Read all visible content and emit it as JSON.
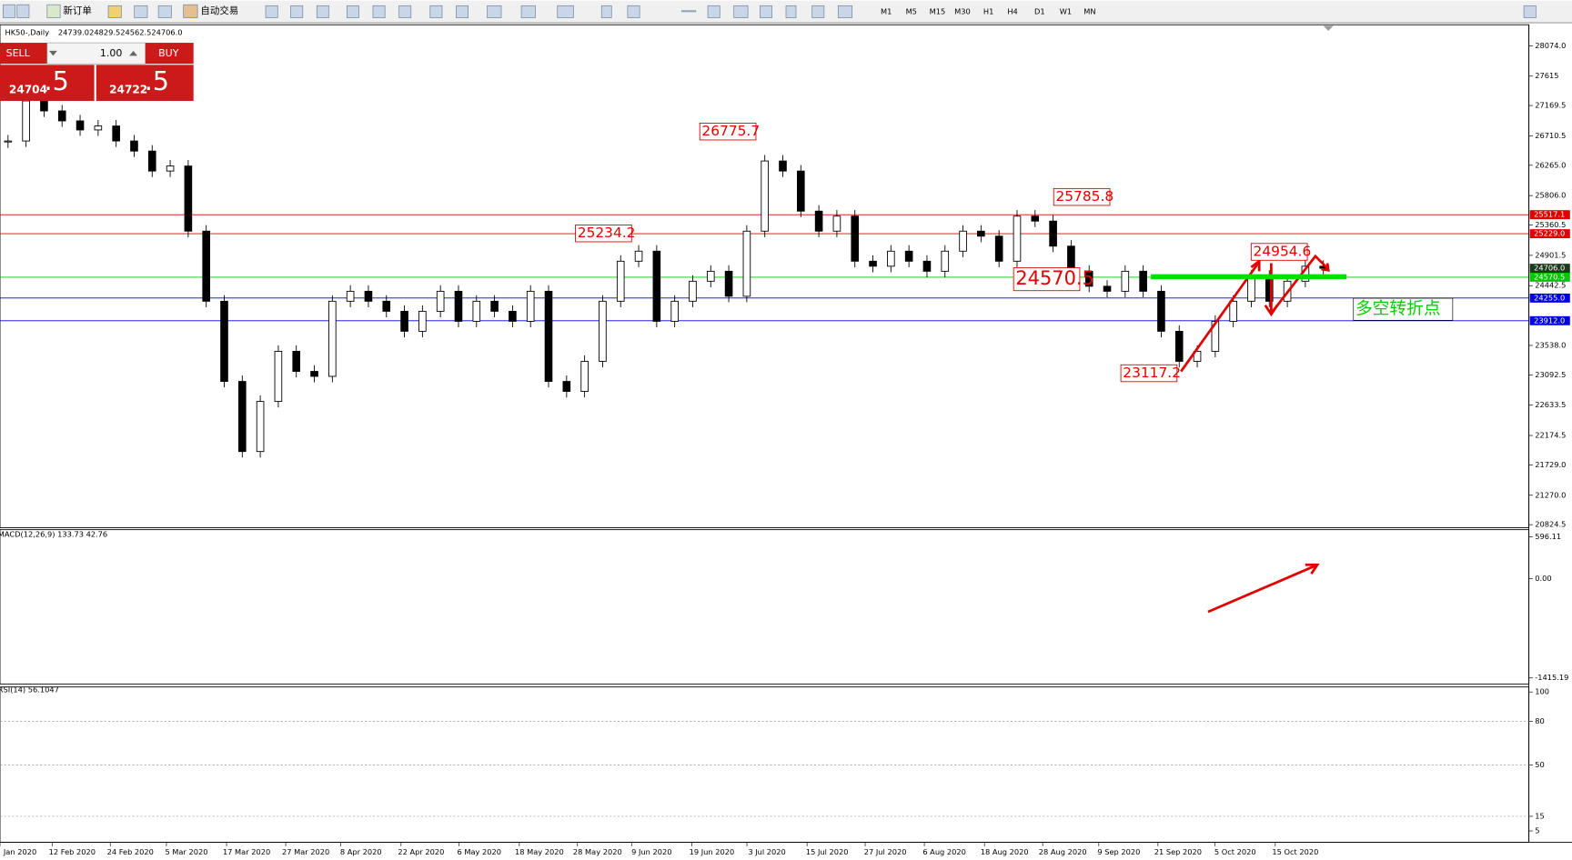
{
  "toolbar": {
    "new_order": "新订单",
    "auto_trading": "自动交易",
    "timeframes": [
      "M1",
      "M5",
      "M15",
      "M30",
      "H1",
      "H4",
      "D1",
      "W1",
      "MN"
    ]
  },
  "trade_panel": {
    "sell": "SELL",
    "buy": "BUY",
    "volume": "1.00",
    "bid_main": "24704",
    "bid_tail": ".5",
    "ask_main": "24722",
    "ask_tail": ".5"
  },
  "chart": {
    "symbol": "HK50-,Daily",
    "ohlc": [
      {
        "value": 24739,
        "label": "24739.0"
      },
      {
        "value": 24829.5,
        "label": "24829.5"
      },
      {
        "value": 24562.5,
        "label": "24562.5"
      },
      {
        "value": 24706,
        "label": "24706.0"
      }
    ],
    "ylim": [
      20824.5,
      28074
    ],
    "yticks": [
      {
        "value": 28074,
        "label": "28074.0"
      },
      27615,
      27169.5,
      26710.5,
      {
        "value": 26265,
        "label": "26265.0"
      },
      {
        "value": 25806,
        "label": "25806.0"
      },
      25360.5,
      24901.5,
      24442.5,
      {
        "value": 23538,
        "label": "23538.0"
      },
      23092.5,
      22633.5,
      22174.5,
      {
        "value": 21729,
        "label": "21729.0"
      },
      {
        "value": 21270,
        "label": "21270.0"
      },
      20824.5
    ],
    "levels": [
      {
        "value": 25517.1,
        "label": "25517.1",
        "color": "#e00000"
      },
      {
        "value": 25229,
        "label": "25229.0",
        "color": "#e00000"
      },
      {
        "value": 24570.5,
        "label": "24570.5",
        "color": "#00c800"
      },
      {
        "value": 24255,
        "label": "24255.0",
        "color": "#0000e0"
      },
      {
        "value": 23912,
        "label": "23912.0",
        "color": "#0000e0"
      }
    ],
    "annotations": [
      26775.7,
      25234.2,
      25785.8,
      24570.5,
      23117.2,
      24954.6
    ],
    "pivot_note": "多空转折点",
    "closes": [
      26633,
      27240,
      27088,
      26937,
      26800,
      26860,
      26633,
      26480,
      26178,
      26254,
      25268,
      24207,
      22993,
      21932,
      22690,
      23449,
      23145,
      23070,
      24207,
      24358,
      24207,
      24055,
      23752,
      24055,
      24358,
      23903,
      24207,
      24055,
      23903,
      24358,
      22993,
      22842,
      23297,
      24207,
      24813,
      24965,
      23903,
      24207,
      24510,
      24661,
      24282,
      25268,
      26330,
      26178,
      25571,
      25268,
      25496,
      24813,
      24737,
      24965,
      24813,
      24661,
      24965,
      25268,
      25192,
      24813,
      25496,
      25420,
      25041,
      24661,
      24434,
      24358,
      24661,
      24358,
      23752,
      23297,
      23449,
      23903,
      24207,
      24586,
      24207,
      24510,
      24737,
      24706
    ],
    "dates": [
      "Jan 2020",
      "12 Feb 2020",
      "24 Feb 2020",
      "5 Mar 2020",
      "17 Mar 2020",
      "27 Mar 2020",
      "8 Apr 2020",
      "22 Apr 2020",
      "6 May 2020",
      "18 May 2020",
      "28 May 2020",
      "9 Jun 2020",
      "19 Jun 2020",
      "3 Jul 2020",
      "15 Jul 2020",
      "27 Jul 2020",
      "6 Aug 2020",
      "18 Aug 2020",
      "28 Aug 2020",
      "9 Sep 2020",
      "21 Sep 2020",
      "5 Oct 2020",
      "15 Oct 2020"
    ],
    "macd": {
      "label": "MACD(12,26,9) 133.73 42.76",
      "ylim": [
        -1415.19,
        596.11
      ],
      "yticks": [
        596.11,
        {
          "value": 0,
          "label": "0.00"
        },
        -1415.19
      ]
    },
    "rsi": {
      "label": "RSI(14) 56.1047",
      "ylim": [
        0,
        100
      ],
      "yticks": [
        100,
        80,
        50,
        15,
        5
      ]
    }
  }
}
